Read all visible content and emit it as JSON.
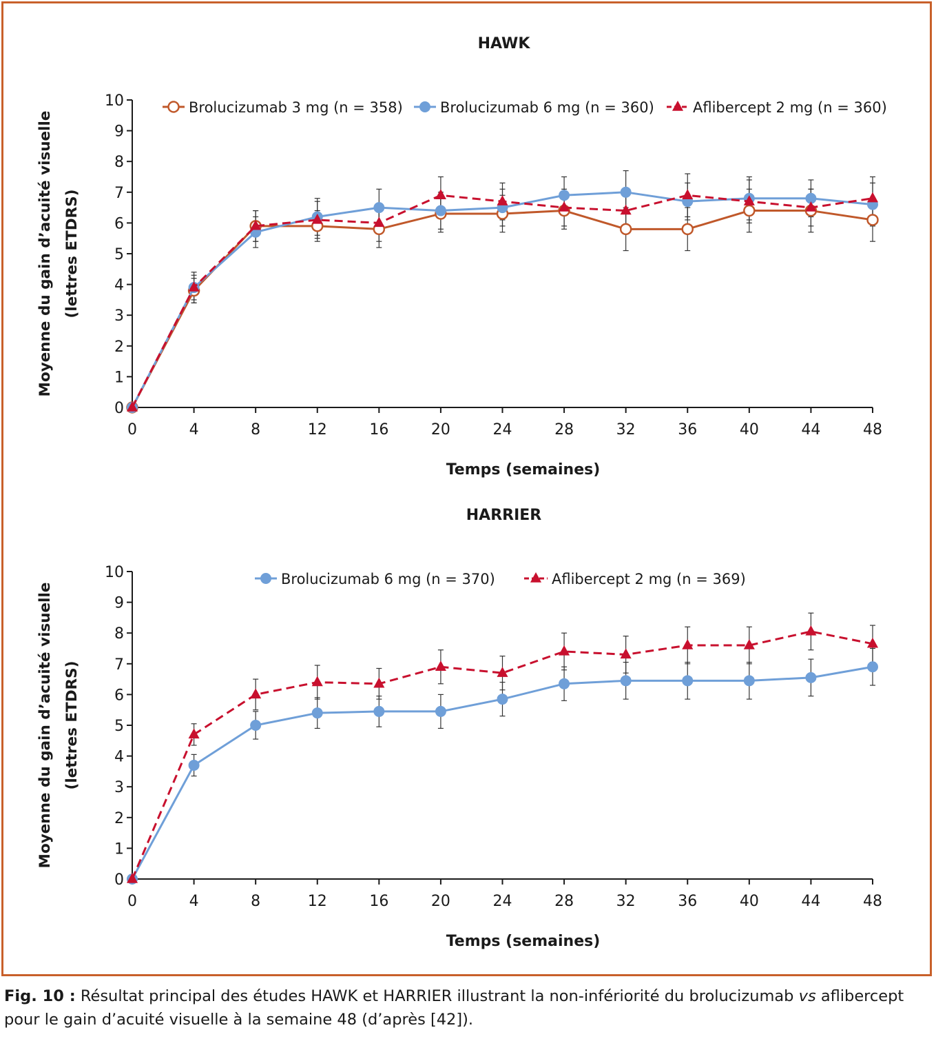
{
  "colors": {
    "frame": "#c8602a",
    "brolu3": "#c0582a",
    "brolu6": "#6f9fd8",
    "aflib": "#c8102e",
    "axis": "#1a1a1a"
  },
  "chart_data": [
    {
      "type": "line",
      "title": "HAWK",
      "xlabel": "Temps (semaines)",
      "ylabel_line1": "Moyenne du gain d’acuité visuelle",
      "ylabel_line2": "(lettres ETDRS)",
      "xlim": [
        0,
        48
      ],
      "ylim": [
        0,
        10
      ],
      "x_ticks": [
        0,
        4,
        8,
        12,
        16,
        20,
        24,
        28,
        32,
        36,
        40,
        44,
        48
      ],
      "y_ticks": [
        0,
        1,
        2,
        3,
        4,
        5,
        6,
        7,
        8,
        9,
        10
      ],
      "legend_position": "top",
      "x": [
        0,
        4,
        8,
        12,
        16,
        20,
        24,
        28,
        32,
        36,
        40,
        44,
        48
      ],
      "series": [
        {
          "key": "brolu3",
          "name": "Brolucizumab 3 mg (n = 358)",
          "marker": "circle-open",
          "line": "solid",
          "values": [
            0,
            3.8,
            5.9,
            5.9,
            5.8,
            6.3,
            6.3,
            6.4,
            5.8,
            5.8,
            6.4,
            6.4,
            6.1
          ],
          "err": [
            0,
            0.4,
            0.5,
            0.5,
            0.6,
            0.6,
            0.6,
            0.6,
            0.7,
            0.7,
            0.7,
            0.7,
            0.7
          ]
        },
        {
          "key": "brolu6",
          "name": "Brolucizumab 6 mg (n = 360)",
          "marker": "circle-filled",
          "line": "solid",
          "values": [
            0,
            3.9,
            5.7,
            6.2,
            6.5,
            6.4,
            6.5,
            6.9,
            7.0,
            6.7,
            6.8,
            6.8,
            6.6
          ],
          "err": [
            0,
            0.5,
            0.5,
            0.6,
            0.6,
            0.6,
            0.6,
            0.6,
            0.7,
            0.6,
            0.7,
            0.6,
            0.7
          ]
        },
        {
          "key": "aflib",
          "name": "Aflibercept 2 mg (n = 360)",
          "marker": "triangle-filled",
          "line": "dashed",
          "values": [
            0,
            3.9,
            5.9,
            6.1,
            6.0,
            6.9,
            6.7,
            6.5,
            6.4,
            6.9,
            6.7,
            6.5,
            6.8
          ],
          "err": [
            0,
            0.4,
            0.5,
            0.6,
            0.6,
            0.6,
            0.6,
            0.6,
            0.6,
            0.7,
            0.7,
            0.6,
            0.7
          ]
        }
      ]
    },
    {
      "type": "line",
      "title": "HARRIER",
      "xlabel": "Temps (semaines)",
      "ylabel_line1": "Moyenne du gain d’acuité visuelle",
      "ylabel_line2": "(lettres ETDRS)",
      "xlim": [
        0,
        48
      ],
      "ylim": [
        0,
        10
      ],
      "x_ticks": [
        0,
        4,
        8,
        12,
        16,
        20,
        24,
        28,
        32,
        36,
        40,
        44,
        48
      ],
      "y_ticks": [
        0,
        1,
        2,
        3,
        4,
        5,
        6,
        7,
        8,
        9,
        10
      ],
      "legend_position": "top",
      "x": [
        0,
        4,
        8,
        12,
        16,
        20,
        24,
        28,
        32,
        36,
        40,
        44,
        48
      ],
      "series": [
        {
          "key": "brolu6",
          "name": "Brolucizumab 6 mg (n = 370)",
          "marker": "circle-filled",
          "line": "solid",
          "values": [
            0,
            3.7,
            5.0,
            5.4,
            5.45,
            5.45,
            5.85,
            6.35,
            6.45,
            6.45,
            6.45,
            6.55,
            6.9
          ],
          "err": [
            0,
            0.35,
            0.45,
            0.5,
            0.5,
            0.55,
            0.55,
            0.55,
            0.6,
            0.6,
            0.6,
            0.6,
            0.6
          ]
        },
        {
          "key": "aflib",
          "name": "Aflibercept 2 mg (n = 369)",
          "marker": "triangle-filled",
          "line": "dashed",
          "values": [
            0,
            4.7,
            6.0,
            6.4,
            6.35,
            6.9,
            6.7,
            7.4,
            7.3,
            7.6,
            7.6,
            8.05,
            7.65
          ],
          "err": [
            0,
            0.35,
            0.5,
            0.55,
            0.5,
            0.55,
            0.55,
            0.6,
            0.6,
            0.6,
            0.6,
            0.6,
            0.6
          ]
        }
      ]
    }
  ],
  "caption": {
    "label": "Fig. 10 :",
    "text_before": " Résultat principal des études HAWK et HARRIER illustrant la non-infériorité du brolucizumab ",
    "italic": "vs",
    "text_after": " aflibercept pour le gain d’acuité visuelle à la semaine 48 (d’après [42])."
  }
}
